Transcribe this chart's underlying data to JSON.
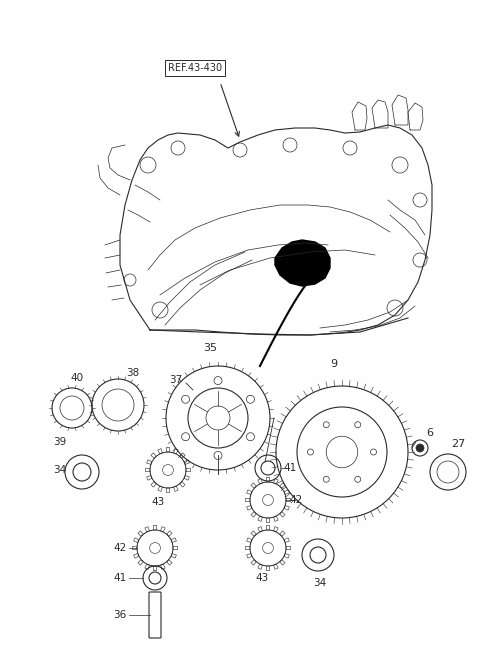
{
  "background_color": "#ffffff",
  "line_color": "#2a2a2a",
  "figure_size": [
    4.8,
    6.56
  ],
  "dpi": 100,
  "ref_label": "REF.43-430"
}
